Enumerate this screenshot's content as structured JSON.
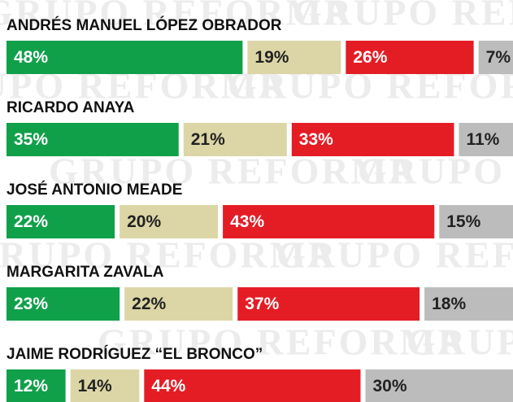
{
  "watermark": "GRUPO REFORMA",
  "chart_data": {
    "type": "stacked-bar",
    "categories": [
      "ANDRÉS MANUEL LÓPEZ OBRADOR",
      "RICARDO ANAYA",
      "JOSÉ ANTONIO MEADE",
      "MARGARITA ZAVALA",
      "JAIME RODRÍGUEZ “EL BRONCO”"
    ],
    "series": [
      {
        "color": "#11a04a",
        "text_color": "#ffffff",
        "values": [
          48,
          35,
          22,
          23,
          12
        ],
        "value_labels": [
          "48%",
          "35%",
          "22%",
          "23%",
          "12%"
        ]
      },
      {
        "color": "#dcd6a6",
        "text_color": "#222222",
        "values": [
          19,
          21,
          20,
          22,
          14
        ],
        "value_labels": [
          "19%",
          "21%",
          "20%",
          "22%",
          "14%"
        ]
      },
      {
        "color": "#e41d25",
        "text_color": "#ffffff",
        "values": [
          26,
          33,
          43,
          37,
          44
        ],
        "value_labels": [
          "26%",
          "33%",
          "43%",
          "37%",
          "44%"
        ]
      },
      {
        "color": "#bcbcbc",
        "text_color": "#222222",
        "values": [
          7,
          11,
          15,
          18,
          30
        ],
        "value_labels": [
          "7%",
          "11%",
          "15%",
          "18%",
          "30%"
        ]
      }
    ]
  }
}
